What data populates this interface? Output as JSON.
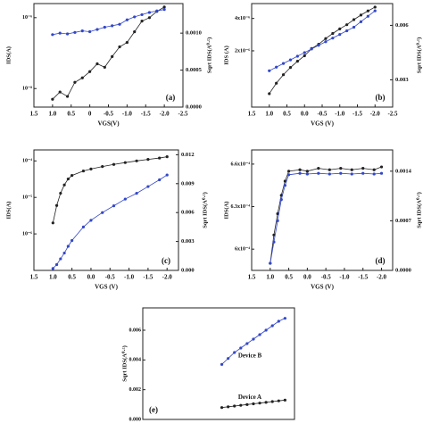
{
  "chart_data": [
    {
      "type": "scatter",
      "label": "(a)",
      "xlabel": "VGS(V)",
      "ylabel": "IDS(A)",
      "y2label": "Sqrt IDS(A⁰·⁵)",
      "xlim": [
        1.5,
        -2.5
      ],
      "xticks": [
        1.5,
        {
          "value": 1.0,
          "label": "1.0"
        },
        0.5,
        0,
        -0.5,
        {
          "value": -1.0,
          "label": "-1.0"
        },
        -1.5,
        {
          "value": -2.0,
          "label": "-2.0"
        },
        -2.5
      ],
      "ylog": true,
      "ylim": [
        3e-09,
        2.5e-06
      ],
      "yticks": [
        {
          "value": 1e-06,
          "label": "10⁻⁶"
        },
        {
          "value": 1e-08,
          "label": "10⁻⁸"
        }
      ],
      "y2lim": [
        0,
        0.0014
      ],
      "y2ticks": [
        {
          "value": 0,
          "label": "0.0000"
        },
        {
          "value": 0.0005,
          "label": "0.0005"
        },
        {
          "value": 0.001,
          "label": "0.0010"
        }
      ],
      "x": [
        1.0,
        0.8,
        0.6,
        0.4,
        0.2,
        0,
        -0.2,
        -0.4,
        -0.6,
        -0.8,
        -1.0,
        -1.2,
        -1.4,
        -1.6,
        -1.8,
        -2.0
      ],
      "series": [
        {
          "color": "#222222",
          "axis": "y",
          "values": [
            5e-09,
            8e-09,
            6e-09,
            1.5e-08,
            2e-08,
            3e-08,
            5e-08,
            4e-08,
            8e-08,
            1.5e-07,
            2e-07,
            4e-07,
            8e-07,
            1e-06,
            1.5e-06,
            2e-06
          ]
        },
        {
          "color": "#3347c8",
          "axis": "y2",
          "values": [
            0.00098,
            0.001,
            0.00099,
            0.00101,
            0.00103,
            0.00102,
            0.00105,
            0.00108,
            0.0011,
            0.00112,
            0.00118,
            0.00122,
            0.00125,
            0.00128,
            0.0013,
            0.00132
          ]
        }
      ]
    },
    {
      "type": "scatter",
      "label": "(b)",
      "xlabel": "VGS (V)",
      "ylabel": "IDS (A)",
      "y2label": "Sqrt IDS(A⁰·⁵)",
      "xlim": [
        1.5,
        -2.5
      ],
      "xticks": [
        1.5,
        {
          "value": 1.0,
          "label": "1.0"
        },
        0.5,
        {
          "value": 0,
          "label": "0.0"
        },
        -0.5,
        {
          "value": -1.0,
          "label": "-1.0"
        },
        -1.5,
        {
          "value": -2.0,
          "label": "-2.0"
        },
        -2.5
      ],
      "ylog": true,
      "ylim": [
        6e-07,
        5.5e-06
      ],
      "yticks": [
        {
          "value": 4e-06,
          "label": "4x10⁻⁶"
        },
        {
          "value": 2e-06,
          "label": "2x10⁻⁶"
        }
      ],
      "y2lim": [
        0.0015,
        0.0072
      ],
      "y2ticks": [
        0.003,
        0.006
      ],
      "x": [
        1.0,
        0.8,
        0.6,
        0.4,
        0.2,
        0,
        -0.2,
        -0.4,
        -0.6,
        -0.8,
        -1.0,
        -1.2,
        -1.4,
        -1.6,
        -1.8,
        -2.0
      ],
      "series": [
        {
          "color": "#222222",
          "axis": "y",
          "values": [
            8e-07,
            1e-06,
            1.2e-06,
            1.4e-06,
            1.6e-06,
            1.8e-06,
            2.1e-06,
            2.3e-06,
            2.6e-06,
            2.9e-06,
            3.2e-06,
            3.5e-06,
            3.9e-06,
            4.3e-06,
            4.7e-06,
            5.1e-06
          ]
        },
        {
          "color": "#3347c8",
          "axis": "y2",
          "values": [
            0.0035,
            0.0037,
            0.0039,
            0.0041,
            0.0043,
            0.0045,
            0.0047,
            0.0049,
            0.0051,
            0.0053,
            0.0055,
            0.0057,
            0.0059,
            0.0062,
            0.0065,
            0.0068
          ]
        }
      ]
    },
    {
      "type": "scatter",
      "label": "(c)",
      "xlabel": "VGS (V)",
      "ylabel": "IDS(A)",
      "y2label": "Sqrt IDS(A⁰·⁵)",
      "xlim": [
        1.5,
        -2.3
      ],
      "xticks": [
        1.5,
        {
          "value": 1.0,
          "label": "1.0"
        },
        0.5,
        {
          "value": 0,
          "label": "0.0"
        },
        -0.5,
        {
          "value": -1.0,
          "label": "-1.0"
        },
        -1.5,
        {
          "value": -2.0,
          "label": "-2.0"
        }
      ],
      "ylog": true,
      "ylim": [
        1e-07,
        0.0002
      ],
      "yticks": [
        {
          "value": 0.0001,
          "label": "10⁻⁴"
        },
        {
          "value": 1e-05,
          "label": "10⁻⁵"
        },
        {
          "value": 1e-06,
          "label": "10⁻⁶"
        }
      ],
      "y2lim": [
        0,
        0.0125
      ],
      "y2ticks": [
        {
          "value": 0,
          "label": "0.000"
        },
        0.003,
        0.006,
        0.009,
        0.012
      ],
      "x": [
        1.0,
        0.9,
        0.8,
        0.7,
        0.6,
        0.5,
        0.2,
        0,
        -0.3,
        -0.6,
        -0.9,
        -1.2,
        -1.5,
        -1.8,
        -2.0
      ],
      "series": [
        {
          "color": "#222222",
          "axis": "y",
          "values": [
            2e-06,
            6e-06,
            1.3e-05,
            2.2e-05,
            3.2e-05,
            4e-05,
            5.3e-05,
            6e-05,
            7e-05,
            8e-05,
            9e-05,
            0.0001,
            0.00011,
            0.00012,
            0.00013
          ]
        },
        {
          "color": "#3347c8",
          "axis": "y2",
          "values": [
            0.0002,
            0.0006,
            0.0012,
            0.0018,
            0.0025,
            0.0031,
            0.0045,
            0.0052,
            0.006,
            0.0067,
            0.0074,
            0.008,
            0.0087,
            0.0094,
            0.0099
          ]
        }
      ]
    },
    {
      "type": "scatter",
      "label": "(d)",
      "xlabel": "VGS (V)",
      "ylabel": "IDS(A)",
      "y2label": "Sqrt IDS(A⁰·⁵)",
      "xlim": [
        1.5,
        -2.3
      ],
      "xticks": [
        1.5,
        {
          "value": 1.0,
          "label": "1.0"
        },
        0.5,
        {
          "value": 0,
          "label": "0.0"
        },
        -0.5,
        {
          "value": -1.0,
          "label": "-1.0"
        },
        -1.5,
        {
          "value": -2.0,
          "label": "-2.0"
        }
      ],
      "ylog": false,
      "ylim": [
        0.000585,
        0.00067
      ],
      "yticks": [
        {
          "value": 0.00066,
          "label": "6.6x10⁻⁴"
        },
        {
          "value": 0.00063,
          "label": "6.3x10⁻⁴"
        },
        {
          "value": 0.0006,
          "label": "6x10⁻⁴"
        }
      ],
      "y2lim": [
        0,
        0.0017
      ],
      "y2ticks": [
        {
          "value": 0,
          "label": "0.0000"
        },
        {
          "value": 0.0007,
          "label": "0.0007"
        },
        {
          "value": 0.0014,
          "label": "0.0014"
        }
      ],
      "x": [
        1.0,
        0.9,
        0.8,
        0.7,
        0.6,
        0.5,
        0.2,
        0,
        -0.3,
        -0.6,
        -0.9,
        -1.2,
        -1.5,
        -1.8,
        -2.0
      ],
      "series": [
        {
          "color": "#222222",
          "axis": "y",
          "values": [
            0.00059,
            0.00061,
            0.000625,
            0.000638,
            0.000648,
            0.000655,
            0.000656,
            0.000655,
            0.000657,
            0.000656,
            0.000657,
            0.000656,
            0.000657,
            0.000656,
            0.000658
          ]
        },
        {
          "color": "#3347c8",
          "axis": "y2",
          "values": [
            0.0001,
            0.0004,
            0.0007,
            0.001,
            0.0012,
            0.00135,
            0.00137,
            0.00136,
            0.00137,
            0.00136,
            0.00137,
            0.00136,
            0.00137,
            0.00136,
            0.00137
          ]
        }
      ]
    },
    {
      "type": "scatter",
      "label": "(e)",
      "ylabel": "Sqrt IDS(A⁰·⁵)",
      "annotations": [
        "Device B",
        "Device A"
      ],
      "xlim": [
        2.5,
        -2.3
      ],
      "ylog": false,
      "ylim": [
        0,
        0.0075
      ],
      "yticks": [
        {
          "value": 0,
          "label": "0.000"
        },
        {
          "value": 0.002,
          "label": "0.002"
        },
        {
          "value": 0.004,
          "label": "0.004"
        },
        {
          "value": 0.006,
          "label": "0.006"
        }
      ],
      "x": [
        0,
        -0.2,
        -0.4,
        -0.6,
        -0.8,
        -1.0,
        -1.2,
        -1.4,
        -1.6,
        -1.8,
        -2.0
      ],
      "series": [
        {
          "color": "#3347c8",
          "axis": "y",
          "values": [
            0.0037,
            0.0041,
            0.0045,
            0.0048,
            0.0051,
            0.0054,
            0.0057,
            0.006,
            0.0063,
            0.0066,
            0.0068
          ]
        },
        {
          "color": "#222222",
          "axis": "y",
          "values": [
            0.0008,
            0.00085,
            0.0009,
            0.00095,
            0.001,
            0.00105,
            0.0011,
            0.00115,
            0.0012,
            0.00125,
            0.0013
          ]
        }
      ]
    }
  ]
}
